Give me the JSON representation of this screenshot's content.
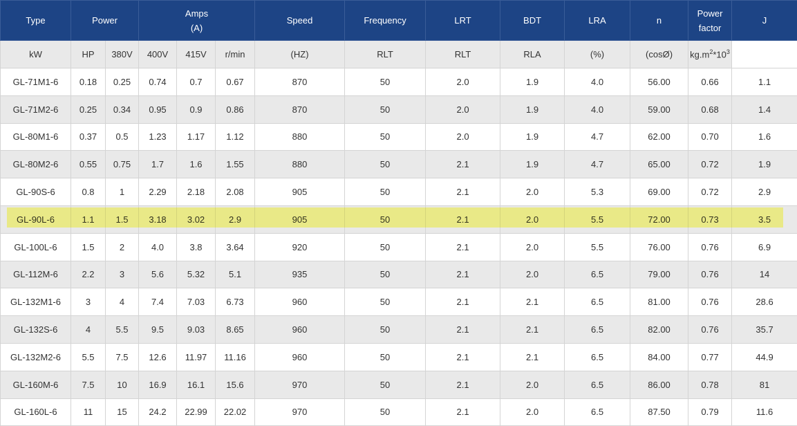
{
  "header": {
    "type": "Type",
    "power": "Power",
    "amps_line1": "Amps",
    "amps_line2": "(A)",
    "speed": "Speed",
    "frequency": "Frequency",
    "lrt": "LRT",
    "bdt": "BDT",
    "lra": "LRA",
    "n": "n",
    "pf_line1": "Power",
    "pf_line2": "factor",
    "j": "J"
  },
  "subheader": {
    "kw": "kW",
    "hp": "HP",
    "v380": "380V",
    "v400": "400V",
    "v415": "415V",
    "speed": "r/min",
    "frequency": "(HZ)",
    "lrt": "RLT",
    "bdt": "RLT",
    "lra": "RLA",
    "n": "(%)",
    "pf": "(cosØ)",
    "j_base": "kg.m",
    "j_exp1": "2",
    "j_mid": "*10",
    "j_exp2": "3"
  },
  "highlight_color": "#ffff3c",
  "highlighted_row": "GL-90L-6",
  "rows": [
    [
      "GL-71M1-6",
      "0.18",
      "0.25",
      "0.74",
      "0.7",
      "0.67",
      "870",
      "50",
      "2.0",
      "1.9",
      "4.0",
      "56.00",
      "0.66",
      "1.1"
    ],
    [
      "GL-71M2-6",
      "0.25",
      "0.34",
      "0.95",
      "0.9",
      "0.86",
      "870",
      "50",
      "2.0",
      "1.9",
      "4.0",
      "59.00",
      "0.68",
      "1.4"
    ],
    [
      "GL-80M1-6",
      "0.37",
      "0.5",
      "1.23",
      "1.17",
      "1.12",
      "880",
      "50",
      "2.0",
      "1.9",
      "4.7",
      "62.00",
      "0.70",
      "1.6"
    ],
    [
      "GL-80M2-6",
      "0.55",
      "0.75",
      "1.7",
      "1.6",
      "1.55",
      "880",
      "50",
      "2.1",
      "1.9",
      "4.7",
      "65.00",
      "0.72",
      "1.9"
    ],
    [
      "GL-90S-6",
      "0.8",
      "1",
      "2.29",
      "2.18",
      "2.08",
      "905",
      "50",
      "2.1",
      "2.0",
      "5.3",
      "69.00",
      "0.72",
      "2.9"
    ],
    [
      "GL-90L-6",
      "1.1",
      "1.5",
      "3.18",
      "3.02",
      "2.9",
      "905",
      "50",
      "2.1",
      "2.0",
      "5.5",
      "72.00",
      "0.73",
      "3.5"
    ],
    [
      "GL-100L-6",
      "1.5",
      "2",
      "4.0",
      "3.8",
      "3.64",
      "920",
      "50",
      "2.1",
      "2.0",
      "5.5",
      "76.00",
      "0.76",
      "6.9"
    ],
    [
      "GL-112M-6",
      "2.2",
      "3",
      "5.6",
      "5.32",
      "5.1",
      "935",
      "50",
      "2.1",
      "2.0",
      "6.5",
      "79.00",
      "0.76",
      "14"
    ],
    [
      "GL-132M1-6",
      "3",
      "4",
      "7.4",
      "7.03",
      "6.73",
      "960",
      "50",
      "2.1",
      "2.1",
      "6.5",
      "81.00",
      "0.76",
      "28.6"
    ],
    [
      "GL-132S-6",
      "4",
      "5.5",
      "9.5",
      "9.03",
      "8.65",
      "960",
      "50",
      "2.1",
      "2.1",
      "6.5",
      "82.00",
      "0.76",
      "35.7"
    ],
    [
      "GL-132M2-6",
      "5.5",
      "7.5",
      "12.6",
      "11.97",
      "11.16",
      "960",
      "50",
      "2.1",
      "2.1",
      "6.5",
      "84.00",
      "0.77",
      "44.9"
    ],
    [
      "GL-160M-6",
      "7.5",
      "10",
      "16.9",
      "16.1",
      "15.6",
      "970",
      "50",
      "2.1",
      "2.0",
      "6.5",
      "86.00",
      "0.78",
      "81"
    ],
    [
      "GL-160L-6",
      "11",
      "15",
      "24.2",
      "22.99",
      "22.02",
      "970",
      "50",
      "2.1",
      "2.0",
      "6.5",
      "87.50",
      "0.79",
      "11.6"
    ]
  ]
}
